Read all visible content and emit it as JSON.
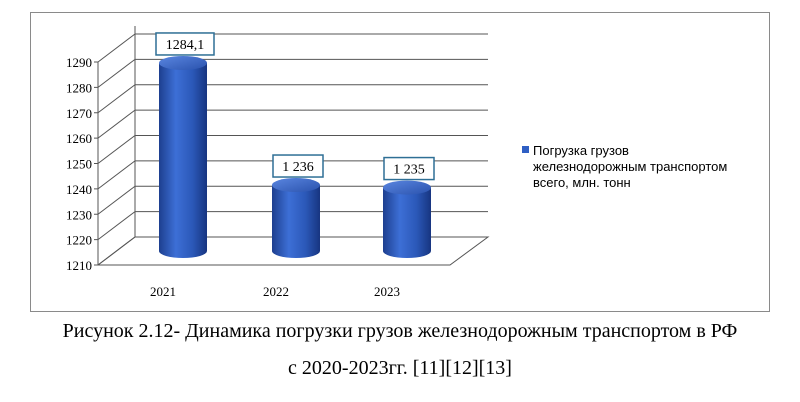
{
  "chart_data": {
    "type": "bar",
    "style": "3d-cylinder",
    "categories": [
      "2021",
      "2022",
      "2023"
    ],
    "series": [
      {
        "name": "Погрузка  грузов железнодорожным транспортом всего, млн. тонн",
        "values": [
          1284.1,
          1236,
          1235
        ],
        "data_labels": [
          "1284,1",
          "1 236",
          "1 235"
        ],
        "color": "#2f5fc4"
      }
    ],
    "y_ticks": [
      "1290",
      "1280",
      "1270",
      "1260",
      "1250",
      "1240",
      "1230",
      "1220",
      "1210"
    ],
    "ylim": [
      1210,
      1290
    ],
    "legend": {
      "position": "right",
      "lines": [
        "Погрузка  грузов",
        "железнодорожным транспортом",
        "всего, млн. тонн"
      ]
    },
    "grid": true
  },
  "caption": {
    "line1": "Рисунок 2.12- Динамика погрузки грузов железнодорожным транспортом в РФ",
    "line2": "с 2020-2023гг. [11][12][13]"
  }
}
